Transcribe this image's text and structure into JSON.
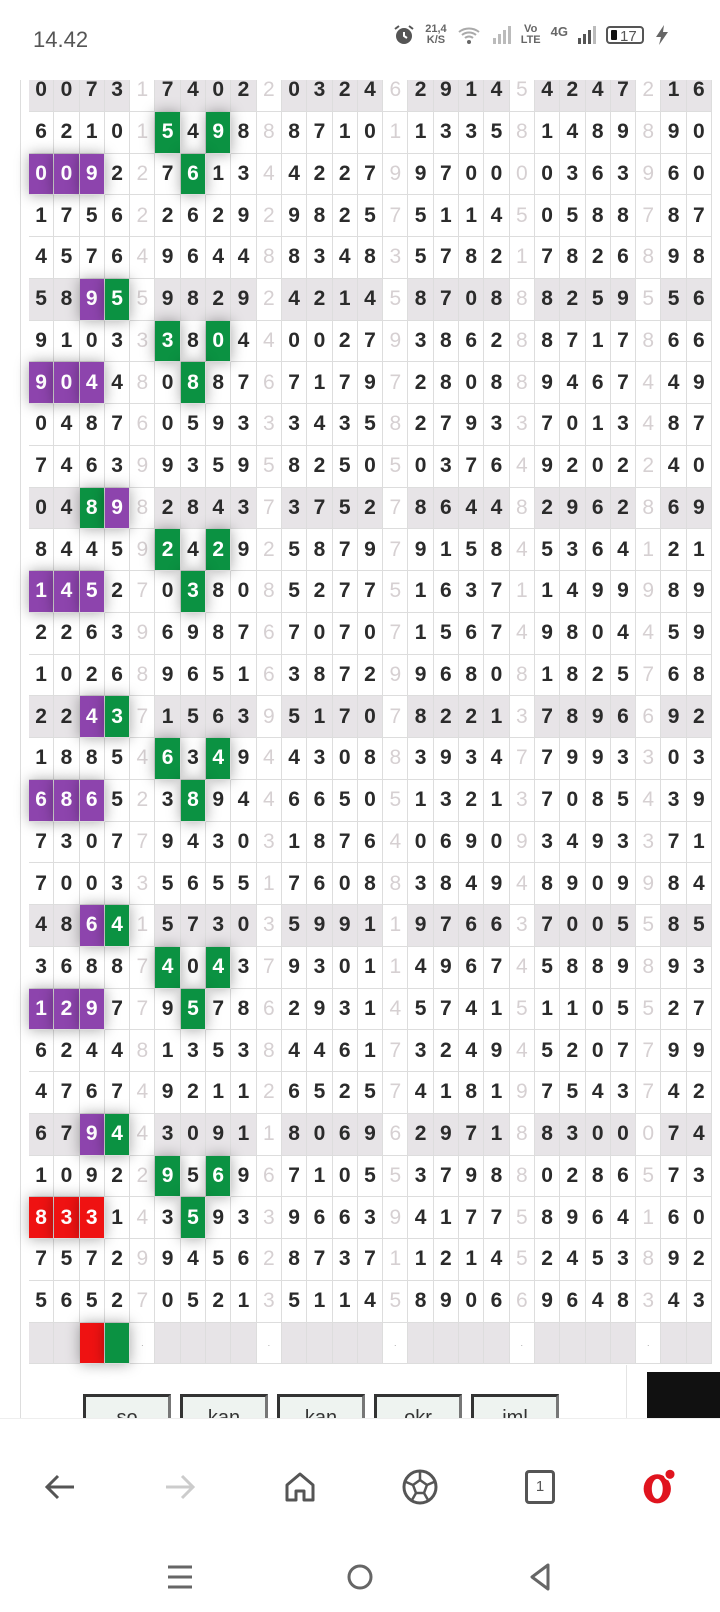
{
  "status_bar": {
    "time": "14.42",
    "net_speed_value": "21,4",
    "net_speed_unit": "K/S",
    "volte_top": "Vo",
    "volte_bottom": "LTE",
    "network": "4G",
    "battery": "17",
    "icons": [
      "alarm-icon",
      "wifi-icon",
      "signal-icon",
      "signal-icon",
      "battery-icon",
      "charging-icon"
    ]
  },
  "colors": {
    "purple": "#8d44ad",
    "green": "#0b9242",
    "red": "#ef1212",
    "shade": "#e7e4e7"
  },
  "grid": {
    "rows": [
      {
        "digits": "007317402203246291454247216",
        "shade": true
      },
      {
        "digits": "621015498887101133581489890",
        "green": [
          5,
          7
        ]
      },
      {
        "digits": "009227613442279970000363960",
        "purple": [
          0,
          1,
          2
        ],
        "green": [
          6
        ]
      },
      {
        "digits": "175622629298257511450588787"
      },
      {
        "digits": "457649644883483578217826898"
      },
      {
        "digits": "589559829242145870888259556",
        "shade": true,
        "purple": [
          2
        ],
        "green": [
          3
        ]
      },
      {
        "digits": "910333804400279386288717866",
        "green": [
          5,
          7
        ]
      },
      {
        "digits": "904480887671797280889467449",
        "purple": [
          0,
          1,
          2
        ],
        "green": [
          6
        ]
      },
      {
        "digits": "048760593334358279337013487"
      },
      {
        "digits": "746399359582505037649202240"
      },
      {
        "digits": "048982843737527864482962869",
        "shade": true,
        "green": [
          2
        ],
        "purple": [
          3
        ]
      },
      {
        "digits": "844592429258797915845364121",
        "green": [
          5,
          7
        ]
      },
      {
        "digits": "145270380852775163711499989",
        "purple": [
          0,
          1,
          2
        ],
        "green": [
          6
        ]
      },
      {
        "digits": "226396987670707156749804459"
      },
      {
        "digits": "102689651638729968081825768"
      },
      {
        "digits": "224371563951707822137896692",
        "shade": true,
        "purple": [
          2
        ],
        "green": [
          3
        ]
      },
      {
        "digits": "188546349443088393477993303",
        "green": [
          5,
          7
        ]
      },
      {
        "digits": "686523894466505132137085439",
        "purple": [
          0,
          1,
          2
        ],
        "green": [
          6
        ]
      },
      {
        "digits": "730779430318764069093493371"
      },
      {
        "digits": "700335655176088384948909984"
      },
      {
        "digits": "486415730359911976637005585",
        "shade": true,
        "purple": [
          2
        ],
        "green": [
          3
        ]
      },
      {
        "digits": "368874043793011496745889893",
        "green": [
          5,
          7
        ]
      },
      {
        "digits": "129779578629314574151105527",
        "purple": [
          0,
          1,
          2
        ],
        "green": [
          6
        ]
      },
      {
        "digits": "624481353844617324945207799"
      },
      {
        "digits": "476749211265257418197543742"
      },
      {
        "digits": "679443091180696297188300074",
        "shade": true,
        "purple": [
          2
        ],
        "green": [
          3
        ]
      },
      {
        "digits": "109229569671055379880286573",
        "green": [
          5,
          7
        ]
      },
      {
        "digits": "833143593396639417758964160",
        "red": [
          0,
          1,
          2
        ],
        "green": [
          6
        ]
      },
      {
        "digits": "757299456287371121452453892"
      },
      {
        "digits": "565270521351145890669648343"
      },
      {
        "digits": "    .    .    .    .    .  ",
        "shade": true,
        "red": [
          2
        ],
        "green": [
          3
        ]
      }
    ]
  },
  "buttons": [
    "so",
    "kan",
    "kan",
    "okr",
    "iml"
  ],
  "browser_toolbar": {
    "tab_count": "1",
    "icons": [
      "back-icon",
      "forward-icon",
      "home-icon",
      "soccer-ball-icon",
      "tabs-icon",
      "opera-menu-icon"
    ]
  },
  "system_nav": {
    "icons": [
      "recents-icon",
      "home-circle-icon",
      "back-triangle-icon"
    ]
  }
}
